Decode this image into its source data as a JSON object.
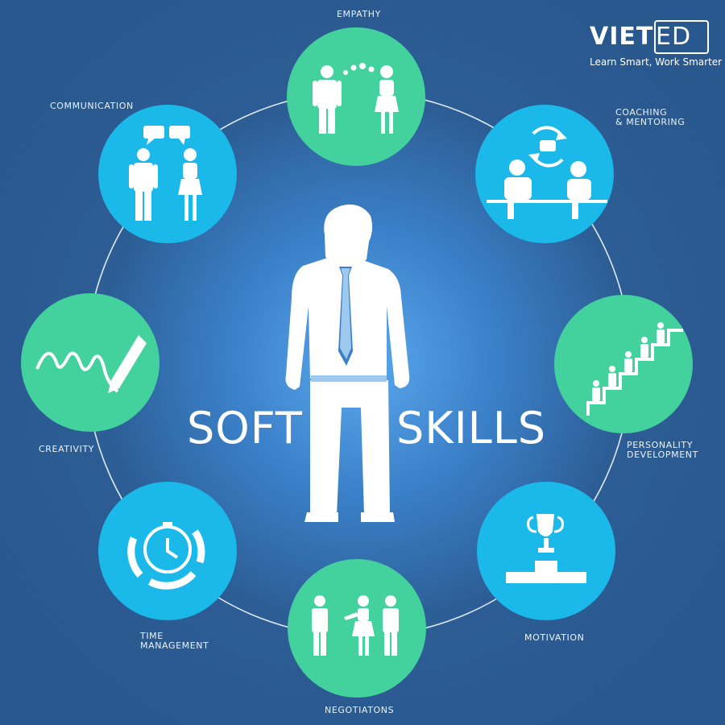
{
  "brand": {
    "logo_text": "VIET",
    "logo_box_text": "ED",
    "tagline": "Learn Smart, Work Smarter"
  },
  "center": {
    "title_left": "SOFT",
    "title_right": "SKILLS"
  },
  "skills": [
    {
      "id": "empathy",
      "label": "EMPATHY",
      "icon": "two-people-dots-icon",
      "color": "#43d19d"
    },
    {
      "id": "coaching",
      "label": "COACHING\n& MENTORING",
      "icon": "coaching-cycle-icon",
      "color": "#1bb8ea"
    },
    {
      "id": "personality",
      "label": "PERSONALITY\nDEVELOPMENT",
      "icon": "stairs-people-icon",
      "color": "#43d19d"
    },
    {
      "id": "motivation",
      "label": "MOTIVATION",
      "icon": "trophy-icon",
      "color": "#1bb8ea"
    },
    {
      "id": "negotiations",
      "label": "NEGOTIATONS",
      "icon": "three-people-icon",
      "color": "#43d19d"
    },
    {
      "id": "time",
      "label": "TIME\nMANAGEMENT",
      "icon": "clock-icon",
      "color": "#1bb8ea"
    },
    {
      "id": "creativity",
      "label": "CREATIVITY",
      "icon": "pencil-icon",
      "color": "#43d19d"
    },
    {
      "id": "communication",
      "label": "COMMUNICATION",
      "icon": "speech-bubbles-icon",
      "color": "#1bb8ea"
    }
  ]
}
